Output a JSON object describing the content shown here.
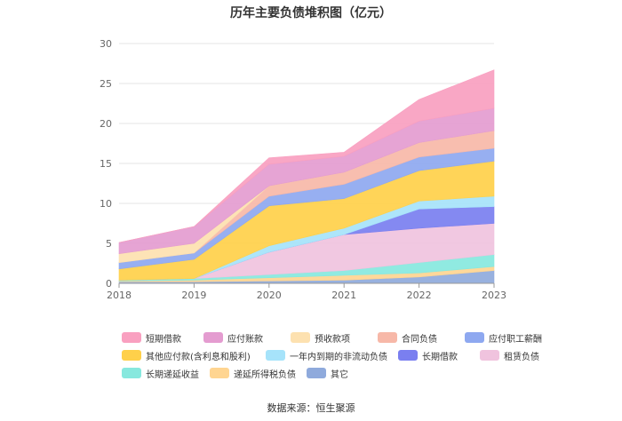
{
  "title": "历年主要负债堆积图（亿元）",
  "source": "数据来源：恒生聚源",
  "chart_data": {
    "type": "area",
    "stacked": true,
    "x": [
      "2018",
      "2019",
      "2020",
      "2021",
      "2022",
      "2023"
    ],
    "ylim": [
      0,
      30
    ],
    "yticks": [
      0,
      5,
      10,
      15,
      20,
      25,
      30
    ],
    "grid": true,
    "legend_position": "bottom",
    "series": [
      {
        "name": "其它",
        "color": "#8faadc",
        "values": [
          0.2,
          0.2,
          0.3,
          0.4,
          0.8,
          1.6
        ]
      },
      {
        "name": "递延所得税负债",
        "color": "#ffd591",
        "values": [
          0.1,
          0.2,
          0.4,
          0.6,
          0.5,
          0.5
        ]
      },
      {
        "name": "长期递延收益",
        "color": "#87e8de",
        "values": [
          0.1,
          0.2,
          0.4,
          0.6,
          1.3,
          1.5
        ]
      },
      {
        "name": "租赁负债",
        "color": "#f0c3de",
        "values": [
          0,
          0,
          2.8,
          4.5,
          4.3,
          3.9
        ]
      },
      {
        "name": "长期借款",
        "color": "#7a7ff0",
        "values": [
          0,
          0,
          0,
          0,
          2.4,
          2.1
        ]
      },
      {
        "name": "一年内到期的非流动负债",
        "color": "#a6e3fa",
        "values": [
          0,
          0,
          0.8,
          0.8,
          1.0,
          1.3
        ]
      },
      {
        "name": "其他应付款(含利息和股利)",
        "color": "#ffd04a",
        "values": [
          1.4,
          2.4,
          5.0,
          3.7,
          3.8,
          4.4
        ]
      },
      {
        "name": "应付职工薪酬",
        "color": "#8ea8f0",
        "values": [
          0.8,
          0.8,
          1.2,
          1.8,
          1.7,
          1.6
        ]
      },
      {
        "name": "合同负债",
        "color": "#f7b8a8",
        "values": [
          0,
          0,
          1.3,
          1.5,
          1.8,
          2.2
        ]
      },
      {
        "name": "预收款项",
        "color": "#fde1b0",
        "values": [
          1.1,
          1.2,
          0,
          0,
          0,
          0
        ]
      },
      {
        "name": "应付账款",
        "color": "#e49cd0",
        "values": [
          1.4,
          2.1,
          2.7,
          2.0,
          2.7,
          2.8
        ]
      },
      {
        "name": "短期借款",
        "color": "#f9a0c0",
        "values": [
          0,
          0,
          0.8,
          0.5,
          2.7,
          4.8
        ]
      }
    ]
  },
  "legend_rows": [
    [
      "短期借款",
      "应付账款",
      "预收款项",
      "合同负债",
      "应付职工薪酬"
    ],
    [
      "其他应付款(含利息和股利)",
      "一年内到期的非流动负债",
      "长期借款",
      "租赁负债"
    ],
    [
      "长期递延收益",
      "递延所得税负债",
      "其它"
    ]
  ]
}
